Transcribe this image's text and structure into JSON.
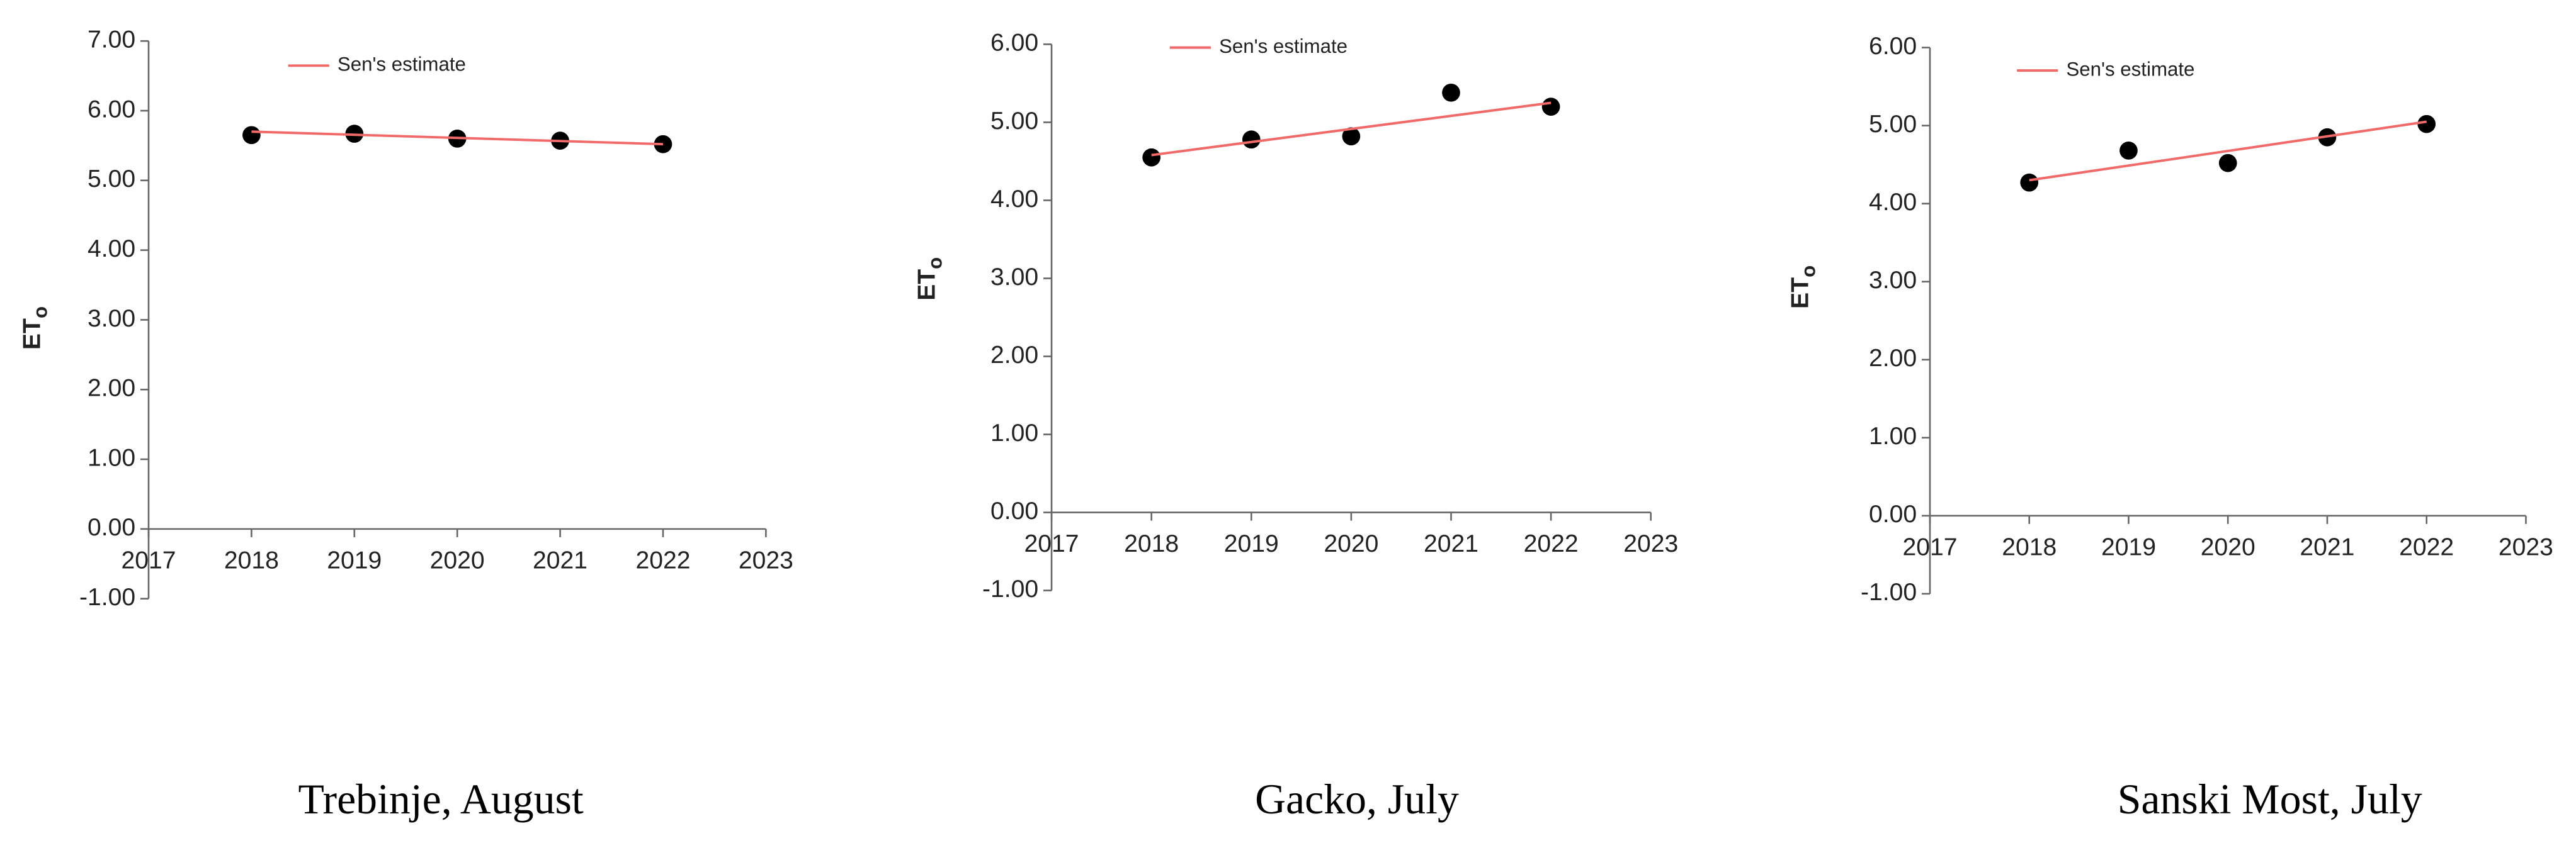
{
  "chart_data": [
    {
      "type": "scatter",
      "caption": "Trebinje, August",
      "y_label": "ET",
      "y_label_subscript": "o",
      "legend": "top-left",
      "x": [
        2018,
        2019,
        2020,
        2021,
        2022
      ],
      "xlim": [
        2017,
        2023
      ],
      "xticks": [
        2017,
        2018,
        2019,
        2020,
        2021,
        2022,
        2023
      ],
      "ylim": [
        -1,
        7
      ],
      "yticks": [
        {
          "value": -1,
          "label": "-1.00"
        },
        {
          "value": 0,
          "label": "0.00"
        },
        {
          "value": 1,
          "label": "1.00"
        },
        {
          "value": 2,
          "label": "2.00"
        },
        {
          "value": 3,
          "label": "3.00"
        },
        {
          "value": 4,
          "label": "4.00"
        },
        {
          "value": 5,
          "label": "5.00"
        },
        {
          "value": 6,
          "label": "6.00"
        },
        {
          "value": 7,
          "label": "7.00"
        }
      ],
      "series": [
        {
          "color": "#000000",
          "values": [
            5.65,
            5.67,
            5.6,
            5.57,
            5.52
          ]
        },
        {
          "name": "Sen's estimate",
          "color": "#f06a6a",
          "x": [
            2018,
            2022
          ],
          "values": [
            5.7,
            5.52
          ]
        }
      ]
    },
    {
      "type": "scatter",
      "caption": "Gacko, July",
      "y_label": "ET",
      "y_label_subscript": "o",
      "legend": "top-left",
      "x": [
        2018,
        2019,
        2020,
        2021,
        2022
      ],
      "xlim": [
        2017,
        2023
      ],
      "xticks": [
        2017,
        2018,
        2019,
        2020,
        2021,
        2022,
        2023
      ],
      "ylim": [
        -1,
        6
      ],
      "yticks": [
        {
          "value": -1,
          "label": "-1.00"
        },
        {
          "value": 0,
          "label": "0.00"
        },
        {
          "value": 1,
          "label": "1.00"
        },
        {
          "value": 2,
          "label": "2.00"
        },
        {
          "value": 3,
          "label": "3.00"
        },
        {
          "value": 4,
          "label": "4.00"
        },
        {
          "value": 5,
          "label": "5.00"
        },
        {
          "value": 6,
          "label": "6.00"
        }
      ],
      "series": [
        {
          "color": "#000000",
          "values": [
            4.55,
            4.78,
            4.82,
            5.38,
            5.2
          ]
        },
        {
          "name": "Sen's estimate",
          "color": "#f06a6a",
          "x": [
            2018,
            2022
          ],
          "values": [
            4.58,
            5.25
          ]
        }
      ]
    },
    {
      "type": "scatter",
      "caption": "Sanski Most, July",
      "y_label": "ET",
      "y_label_subscript": "o",
      "legend": "top-left",
      "x": [
        2018,
        2019,
        2020,
        2021,
        2022
      ],
      "xlim": [
        2017,
        2023
      ],
      "xticks": [
        2017,
        2018,
        2019,
        2020,
        2021,
        2022,
        2023
      ],
      "ylim": [
        -1,
        6
      ],
      "yticks": [
        {
          "value": -1,
          "label": "-1.00"
        },
        {
          "value": 0,
          "label": "0.00"
        },
        {
          "value": 1,
          "label": "1.00"
        },
        {
          "value": 2,
          "label": "2.00"
        },
        {
          "value": 3,
          "label": "3.00"
        },
        {
          "value": 4,
          "label": "4.00"
        },
        {
          "value": 5,
          "label": "5.00"
        },
        {
          "value": 6,
          "label": "6.00"
        }
      ],
      "series": [
        {
          "color": "#000000",
          "values": [
            4.27,
            4.68,
            4.52,
            4.85,
            5.02
          ]
        },
        {
          "name": "Sen's estimate",
          "color": "#f06a6a",
          "x": [
            2018,
            2022
          ],
          "values": [
            4.3,
            5.05
          ]
        }
      ]
    }
  ]
}
